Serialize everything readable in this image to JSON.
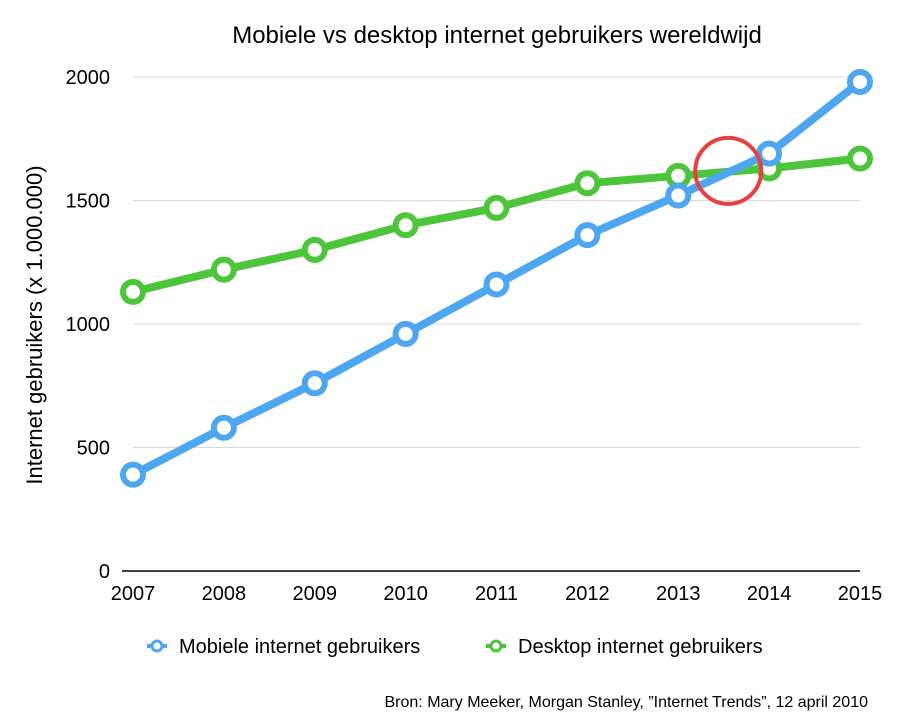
{
  "chart_data": {
    "type": "line",
    "title": "Mobiele vs desktop internet gebruikers wereldwijd",
    "xlabel": "",
    "ylabel": "Internet gebruikers (x 1.000.000)",
    "categories": [
      "2007",
      "2008",
      "2009",
      "2010",
      "2011",
      "2012",
      "2013",
      "2014",
      "2015"
    ],
    "yticks": [
      "0",
      "500",
      "1000",
      "1500",
      "2000"
    ],
    "ylim": [
      0,
      2000
    ],
    "grid": true,
    "legend_position": "bottom",
    "series": [
      {
        "name": "Mobiele internet gebruikers",
        "color": "#4ea6f0",
        "values": [
          390,
          580,
          760,
          960,
          1160,
          1360,
          1520,
          1690,
          1980
        ]
      },
      {
        "name": "Desktop internet gebruikers",
        "color": "#4dc53b",
        "values": [
          1130,
          1220,
          1300,
          1400,
          1470,
          1570,
          1600,
          1630,
          1670
        ]
      }
    ],
    "annotation": {
      "type": "circle",
      "color": "#e84040",
      "x": 2013.55,
      "y": 1620
    },
    "source": "Bron: Mary Meeker, Morgan Stanley, ”Internet Trends”, 12 april 2010"
  }
}
